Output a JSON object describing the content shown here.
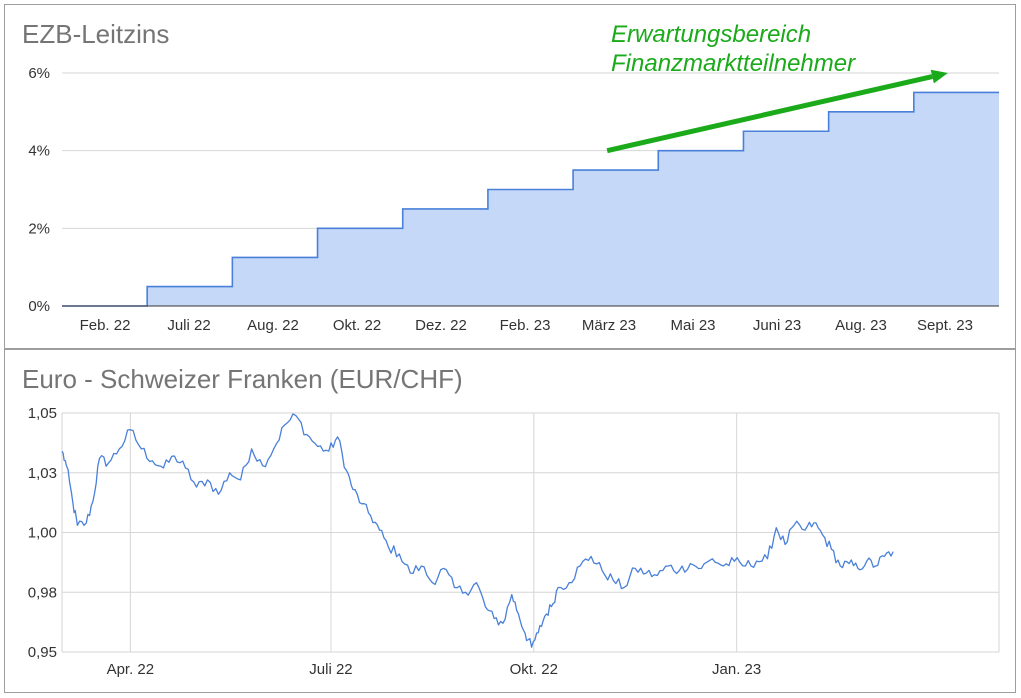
{
  "chart_data": [
    {
      "type": "area",
      "title": "EZB-Leitzins",
      "step": true,
      "x_tick_labels": [
        "Feb. 22",
        "Juli 22",
        "Aug. 22",
        "Okt. 22",
        "Dez. 22",
        "Feb. 23",
        "März 23",
        "Mai 23",
        "Juni 23",
        "Aug. 23",
        "Sept. 23"
      ],
      "y_tick_labels": [
        "0%",
        "2%",
        "4%",
        "6%"
      ],
      "y_ticks": [
        0,
        2,
        4,
        6
      ],
      "ylim": [
        0,
        6
      ],
      "x_range": [
        0,
        11
      ],
      "grid": true,
      "colors": {
        "line": "#4a80d9",
        "fill": "#c5d8f7",
        "annotation": "#1aaa1a"
      },
      "points": [
        {
          "x": 0.0,
          "y": 0.0
        },
        {
          "x": 1.0,
          "y": 0.5
        },
        {
          "x": 2.0,
          "y": 1.25
        },
        {
          "x": 3.0,
          "y": 2.0
        },
        {
          "x": 4.0,
          "y": 2.5
        },
        {
          "x": 5.0,
          "y": 3.0
        },
        {
          "x": 6.0,
          "y": 3.5
        },
        {
          "x": 7.0,
          "y": 4.0
        },
        {
          "x": 8.0,
          "y": 4.5
        },
        {
          "x": 9.0,
          "y": 5.0
        },
        {
          "x": 10.0,
          "y": 5.5
        },
        {
          "x": 11.0,
          "y": 5.5
        }
      ],
      "annotation": {
        "lines": [
          "Erwartungsbereich",
          "Finanzmarktteilnehmer"
        ],
        "arrow_from": {
          "x": 6.4,
          "y": 4.0
        },
        "arrow_to": {
          "x": 10.4,
          "y": 6.0
        }
      }
    },
    {
      "type": "line",
      "title": "Euro - Schweizer Franken (EUR/CHF)",
      "x_tick_labels": [
        "Apr. 22",
        "Juli 22",
        "Okt. 22",
        "Jan. 23"
      ],
      "x_tick_dates": [
        "2022-04-01",
        "2022-07-01",
        "2022-10-01",
        "2023-01-01"
      ],
      "x_range": [
        "2022-03-01",
        "2023-04-30"
      ],
      "y_tick_labels": [
        "0,95",
        "0,98",
        "1,00",
        "1,03",
        "1,05"
      ],
      "y_ticks": [
        0.95,
        0.975,
        1.0,
        1.025,
        1.05
      ],
      "ylim": [
        0.95,
        1.05
      ],
      "grid": true,
      "colors": {
        "line": "#4a80d9"
      },
      "anchors": [
        [
          "2022-03-01",
          1.034
        ],
        [
          "2022-03-03",
          1.028
        ],
        [
          "2022-03-06",
          1.012
        ],
        [
          "2022-03-08",
          1.003
        ],
        [
          "2022-03-12",
          1.004
        ],
        [
          "2022-03-15",
          1.013
        ],
        [
          "2022-03-18",
          1.031
        ],
        [
          "2022-03-22",
          1.029
        ],
        [
          "2022-03-27",
          1.035
        ],
        [
          "2022-04-01",
          1.043
        ],
        [
          "2022-04-06",
          1.035
        ],
        [
          "2022-04-11",
          1.03
        ],
        [
          "2022-04-16",
          1.027
        ],
        [
          "2022-04-21",
          1.032
        ],
        [
          "2022-04-26",
          1.027
        ],
        [
          "2022-05-01",
          1.019
        ],
        [
          "2022-05-06",
          1.022
        ],
        [
          "2022-05-11",
          1.016
        ],
        [
          "2022-05-16",
          1.025
        ],
        [
          "2022-05-21",
          1.022
        ],
        [
          "2022-05-26",
          1.035
        ],
        [
          "2022-05-31",
          1.028
        ],
        [
          "2022-06-05",
          1.035
        ],
        [
          "2022-06-10",
          1.045
        ],
        [
          "2022-06-15",
          1.049
        ],
        [
          "2022-06-20",
          1.041
        ],
        [
          "2022-06-25",
          1.036
        ],
        [
          "2022-06-30",
          1.034
        ],
        [
          "2022-07-04",
          1.04
        ],
        [
          "2022-07-08",
          1.026
        ],
        [
          "2022-07-11",
          1.018
        ],
        [
          "2022-07-15",
          1.012
        ],
        [
          "2022-07-19",
          1.007
        ],
        [
          "2022-07-23",
          1.001
        ],
        [
          "2022-07-27",
          0.994
        ],
        [
          "2022-08-01",
          0.991
        ],
        [
          "2022-08-06",
          0.983
        ],
        [
          "2022-08-11",
          0.986
        ],
        [
          "2022-08-16",
          0.979
        ],
        [
          "2022-08-21",
          0.985
        ],
        [
          "2022-08-26",
          0.977
        ],
        [
          "2022-08-31",
          0.975
        ],
        [
          "2022-09-05",
          0.979
        ],
        [
          "2022-09-09",
          0.969
        ],
        [
          "2022-09-13",
          0.964
        ],
        [
          "2022-09-17",
          0.962
        ],
        [
          "2022-09-21",
          0.974
        ],
        [
          "2022-09-24",
          0.966
        ],
        [
          "2022-09-27",
          0.958
        ],
        [
          "2022-09-30",
          0.952
        ],
        [
          "2022-10-03",
          0.958
        ],
        [
          "2022-10-06",
          0.965
        ],
        [
          "2022-10-09",
          0.969
        ],
        [
          "2022-10-12",
          0.977
        ],
        [
          "2022-10-17",
          0.979
        ],
        [
          "2022-10-22",
          0.986
        ],
        [
          "2022-10-27",
          0.99
        ],
        [
          "2022-11-01",
          0.984
        ],
        [
          "2022-11-06",
          0.98
        ],
        [
          "2022-11-11",
          0.977
        ],
        [
          "2022-11-16",
          0.985
        ],
        [
          "2022-11-21",
          0.983
        ],
        [
          "2022-11-26",
          0.982
        ],
        [
          "2022-12-01",
          0.986
        ],
        [
          "2022-12-06",
          0.984
        ],
        [
          "2022-12-11",
          0.987
        ],
        [
          "2022-12-16",
          0.985
        ],
        [
          "2022-12-21",
          0.989
        ],
        [
          "2022-12-26",
          0.986
        ],
        [
          "2022-12-31",
          0.988
        ],
        [
          "2023-01-05",
          0.986
        ],
        [
          "2023-01-10",
          0.988
        ],
        [
          "2023-01-15",
          0.989
        ],
        [
          "2023-01-19",
          1.002
        ],
        [
          "2023-01-23",
          0.995
        ],
        [
          "2023-01-27",
          1.003
        ],
        [
          "2023-02-01",
          1.001
        ],
        [
          "2023-02-05",
          1.004
        ],
        [
          "2023-02-09",
          0.999
        ],
        [
          "2023-02-13",
          0.993
        ],
        [
          "2023-02-17",
          0.986
        ],
        [
          "2023-02-21",
          0.987
        ],
        [
          "2023-02-25",
          0.985
        ],
        [
          "2023-03-01",
          0.988
        ],
        [
          "2023-03-05",
          0.986
        ],
        [
          "2023-03-09",
          0.99
        ],
        [
          "2023-03-13",
          0.992
        ]
      ]
    }
  ]
}
